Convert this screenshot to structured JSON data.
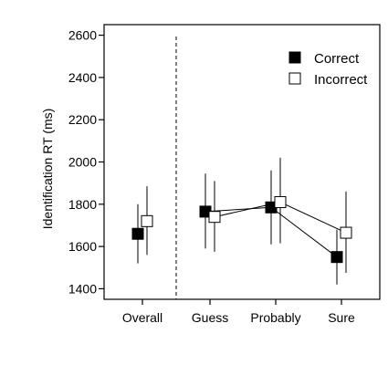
{
  "chart_data": {
    "type": "scatter",
    "categories": [
      "Overall",
      "Guess",
      "Probably",
      "Sure"
    ],
    "ylabel": "Identification RT (ms)",
    "xlabel": "",
    "ylim": [
      1350,
      2650
    ],
    "yticks": [
      1400,
      1600,
      1800,
      2000,
      2200,
      2400,
      2600
    ],
    "divider_after_category": "Overall",
    "lines_connect_categories": [
      "Guess",
      "Probably",
      "Sure"
    ],
    "legend": {
      "placement": "top-right"
    },
    "series": [
      {
        "name": "Correct",
        "marker": "filled-square",
        "color": "#000000",
        "values": [
          1660,
          1765,
          1785,
          1550
        ],
        "error_low": [
          1520,
          1590,
          1610,
          1420
        ],
        "error_high": [
          1800,
          1945,
          1960,
          1680
        ]
      },
      {
        "name": "Incorrect",
        "marker": "open-square",
        "color": "#000000",
        "values": [
          1720,
          1740,
          1810,
          1665
        ],
        "error_low": [
          1560,
          1575,
          1615,
          1475
        ],
        "error_high": [
          1885,
          1910,
          2020,
          1860
        ]
      }
    ]
  }
}
